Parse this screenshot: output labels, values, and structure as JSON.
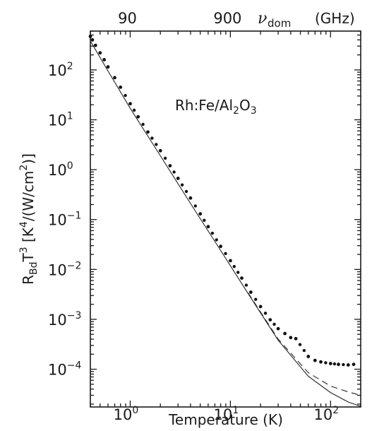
{
  "chart_data": {
    "type": "scatter",
    "title": "",
    "xlabel": "Temperature (K)",
    "ylabel": {
      "parts": [
        {
          "t": "R",
          "s": "n"
        },
        {
          "t": "Bd",
          "s": "sub"
        },
        {
          "t": "T",
          "s": "n"
        },
        {
          "t": "3",
          "s": "sup"
        },
        {
          "t": " [K",
          "s": "n"
        },
        {
          "t": "4",
          "s": "sup"
        },
        {
          "t": "/(W/cm",
          "s": "n"
        },
        {
          "t": "2",
          "s": "sup"
        },
        {
          "t": ")]",
          "s": "n"
        }
      ]
    },
    "top_axis": {
      "label_symbol": "ν",
      "label_sub": "dom",
      "label_unit": "(GHz)",
      "ticks": [
        {
          "label": "90",
          "at_temperature": 1.0
        },
        {
          "label": "900",
          "at_temperature": 10.0
        }
      ]
    },
    "annotation": {
      "parts": [
        {
          "t": "Rh:Fe/Al",
          "s": "n"
        },
        {
          "t": "2",
          "s": "sub"
        },
        {
          "t": "O",
          "s": "n"
        },
        {
          "t": "3",
          "s": "sub"
        }
      ]
    },
    "x_scale": "log",
    "y_scale": "log",
    "xlim": [
      0.4,
      200
    ],
    "ylim": [
      1.75e-05,
      600
    ],
    "x_ticks": [
      {
        "value": 1,
        "base": "10",
        "exp": "0"
      },
      {
        "value": 10,
        "base": "10",
        "exp": "1"
      },
      {
        "value": 100,
        "base": "10",
        "exp": "2"
      }
    ],
    "y_ticks": [
      {
        "value": 100,
        "base": "10",
        "exp": "2"
      },
      {
        "value": 10,
        "base": "10",
        "exp": "1"
      },
      {
        "value": 1,
        "base": "10",
        "exp": "0"
      },
      {
        "value": 0.1,
        "base": "10",
        "exp": "−1"
      },
      {
        "value": 0.01,
        "base": "10",
        "exp": "−2"
      },
      {
        "value": 0.001,
        "base": "10",
        "exp": "−3"
      },
      {
        "value": 0.0001,
        "base": "10",
        "exp": "−4"
      }
    ],
    "grid": false,
    "series": [
      {
        "style": "dots",
        "x": [
          0.4,
          0.42,
          0.45,
          0.5,
          0.55,
          0.6,
          0.7,
          0.8,
          1.0,
          1.2,
          1.5,
          2.0,
          2.5,
          3.0,
          4.0,
          5.0,
          6.0,
          8.0,
          10.0,
          13.0,
          16.0,
          20.0,
          25.0,
          30.0,
          35.0,
          40.0,
          45.0,
          60.0,
          70.0,
          80.0,
          100.0,
          120.0,
          150.0,
          170.0
        ],
        "y": [
          470,
          400,
          310,
          220,
          160,
          115,
          70,
          45,
          21,
          11.5,
          5.7,
          2.4,
          1.2,
          0.67,
          0.27,
          0.13,
          0.072,
          0.029,
          0.015,
          0.0067,
          0.0035,
          0.0018,
          0.00098,
          0.00065,
          0.00052,
          0.00043,
          0.00041,
          0.00018,
          0.00015,
          0.00014,
          0.00013,
          0.000125,
          0.000122,
          0.000125
        ]
      },
      {
        "style": "solid",
        "x": [
          0.4,
          0.6,
          1.0,
          2.0,
          4.0,
          8.0,
          15.0,
          30.0,
          60.0,
          100.0,
          150.0,
          200.0
        ],
        "y": [
          380,
          95,
          17,
          1.9,
          0.21,
          0.024,
          0.0033,
          0.00038,
          7.2e-05,
          3.4e-05,
          2.2e-05,
          1.8e-05
        ]
      },
      {
        "style": "dashed",
        "x": [
          15.0,
          30.0,
          60.0,
          100.0,
          150.0,
          200.0
        ],
        "y": [
          0.0034,
          0.0004,
          8.5e-05,
          4.6e-05,
          3.5e-05,
          3e-05
        ]
      }
    ]
  }
}
